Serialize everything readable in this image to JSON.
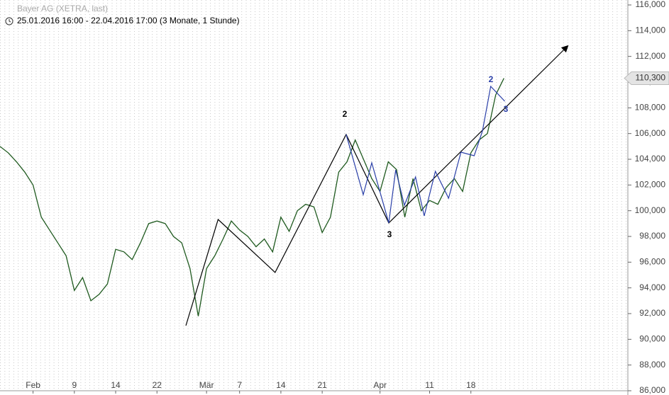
{
  "chart_data": {
    "type": "line",
    "title": "Bayer AG (XETRA, last)",
    "subtitle": "25.01.2016 16:00 - 22.04.2016 17:00 (3 Monate, 1 Stunde)",
    "x": [
      0,
      1,
      2,
      3,
      4,
      5,
      6,
      7,
      8,
      9,
      10,
      11,
      12,
      13,
      14,
      15,
      16,
      17,
      18,
      19,
      20,
      21,
      22,
      23,
      24,
      25,
      26,
      27,
      28,
      29,
      30,
      31,
      32,
      33,
      34,
      35,
      36,
      37,
      38,
      39,
      40,
      41,
      42,
      43,
      44,
      45,
      46,
      47,
      48,
      49,
      50,
      51,
      52,
      53,
      54,
      55,
      56,
      57,
      58,
      59,
      60,
      61
    ],
    "series": [
      {
        "name": "Bayer AG",
        "color": "#1f5a1f",
        "values": [
          105000,
          104500,
          103800,
          103000,
          102000,
          99500,
          98500,
          97500,
          96500,
          93800,
          94800,
          93000,
          93500,
          94300,
          97000,
          96800,
          96200,
          97500,
          99000,
          99200,
          99000,
          98000,
          97500,
          95500,
          91800,
          95500,
          96500,
          97800,
          99200,
          98500,
          98000,
          97200,
          97800,
          96800,
          99500,
          98400,
          100000,
          100500,
          100300,
          98300,
          99500,
          103000,
          103800,
          105500,
          104000,
          102500,
          101500,
          103800,
          103200,
          99500,
          102500,
          100000,
          100800,
          100500,
          101800,
          102500,
          101500,
          104500,
          105500,
          106000,
          109000,
          110300
        ]
      }
    ],
    "xlim": [
      0,
      76
    ],
    "xticks": [
      {
        "value": 4,
        "label": "Feb"
      },
      9,
      14,
      {
        "value": 19,
        "label": "22"
      },
      {
        "value": 25,
        "label": "Mär"
      },
      {
        "value": 29,
        "label": "7"
      },
      {
        "value": 34,
        "label": "14"
      },
      {
        "value": 39,
        "label": "21"
      },
      {
        "value": 46,
        "label": "Apr"
      },
      {
        "value": 52,
        "label": "11"
      },
      {
        "value": 57,
        "label": "18"
      }
    ],
    "ylim": [
      86000,
      116000
    ],
    "yticks": [
      {
        "value": 86000,
        "label": "86,000"
      },
      {
        "value": 88000,
        "label": "88,000"
      },
      {
        "value": 90000,
        "label": "90,000"
      },
      {
        "value": 92000,
        "label": "92,000"
      },
      {
        "value": 94000,
        "label": "94,000"
      },
      {
        "value": 96000,
        "label": "96,000"
      },
      {
        "value": 98000,
        "label": "98,000"
      },
      {
        "value": 100000,
        "label": "100,000"
      },
      {
        "value": 102000,
        "label": "102,000"
      },
      {
        "value": 104000,
        "label": "104,000"
      },
      {
        "value": 106000,
        "label": "106,000"
      },
      {
        "value": 108000,
        "label": "108,000"
      },
      {
        "value": 110000,
        "label": "110,000"
      },
      {
        "value": 112000,
        "label": "112,000"
      },
      {
        "value": 114000,
        "label": "114,000"
      },
      {
        "value": 116000,
        "label": "116,000"
      }
    ],
    "last_value": {
      "value": 110300,
      "label": "110,300"
    },
    "wave_lines": [
      {
        "color": "#000000",
        "x": [
          22.5,
          26.4,
          33.3,
          41.9,
          47.06,
          68.7
        ],
        "values": [
          91064,
          99320,
          95200,
          105930,
          99050,
          112800
        ]
      },
      {
        "color": "#2a3fa8",
        "x": [
          41.9,
          43.97,
          45.0,
          47.06,
          47.9,
          48.95,
          50.3,
          51.35,
          52.7,
          54.3,
          55.8,
          57.4,
          58.4,
          59.4,
          61.1
        ],
        "values": [
          105930,
          101248,
          103725,
          99050,
          103174,
          100422,
          102624,
          99596,
          103064,
          100972,
          104550,
          104275,
          106202,
          109670,
          108514
        ]
      }
    ],
    "annotations": [
      {
        "text": "2",
        "color": "#000000"
      },
      {
        "text": "3",
        "color": "#000000"
      },
      {
        "text": "2",
        "color": "#2a3fa8"
      },
      {
        "text": "3",
        "color": "#2a3fa8"
      }
    ]
  }
}
